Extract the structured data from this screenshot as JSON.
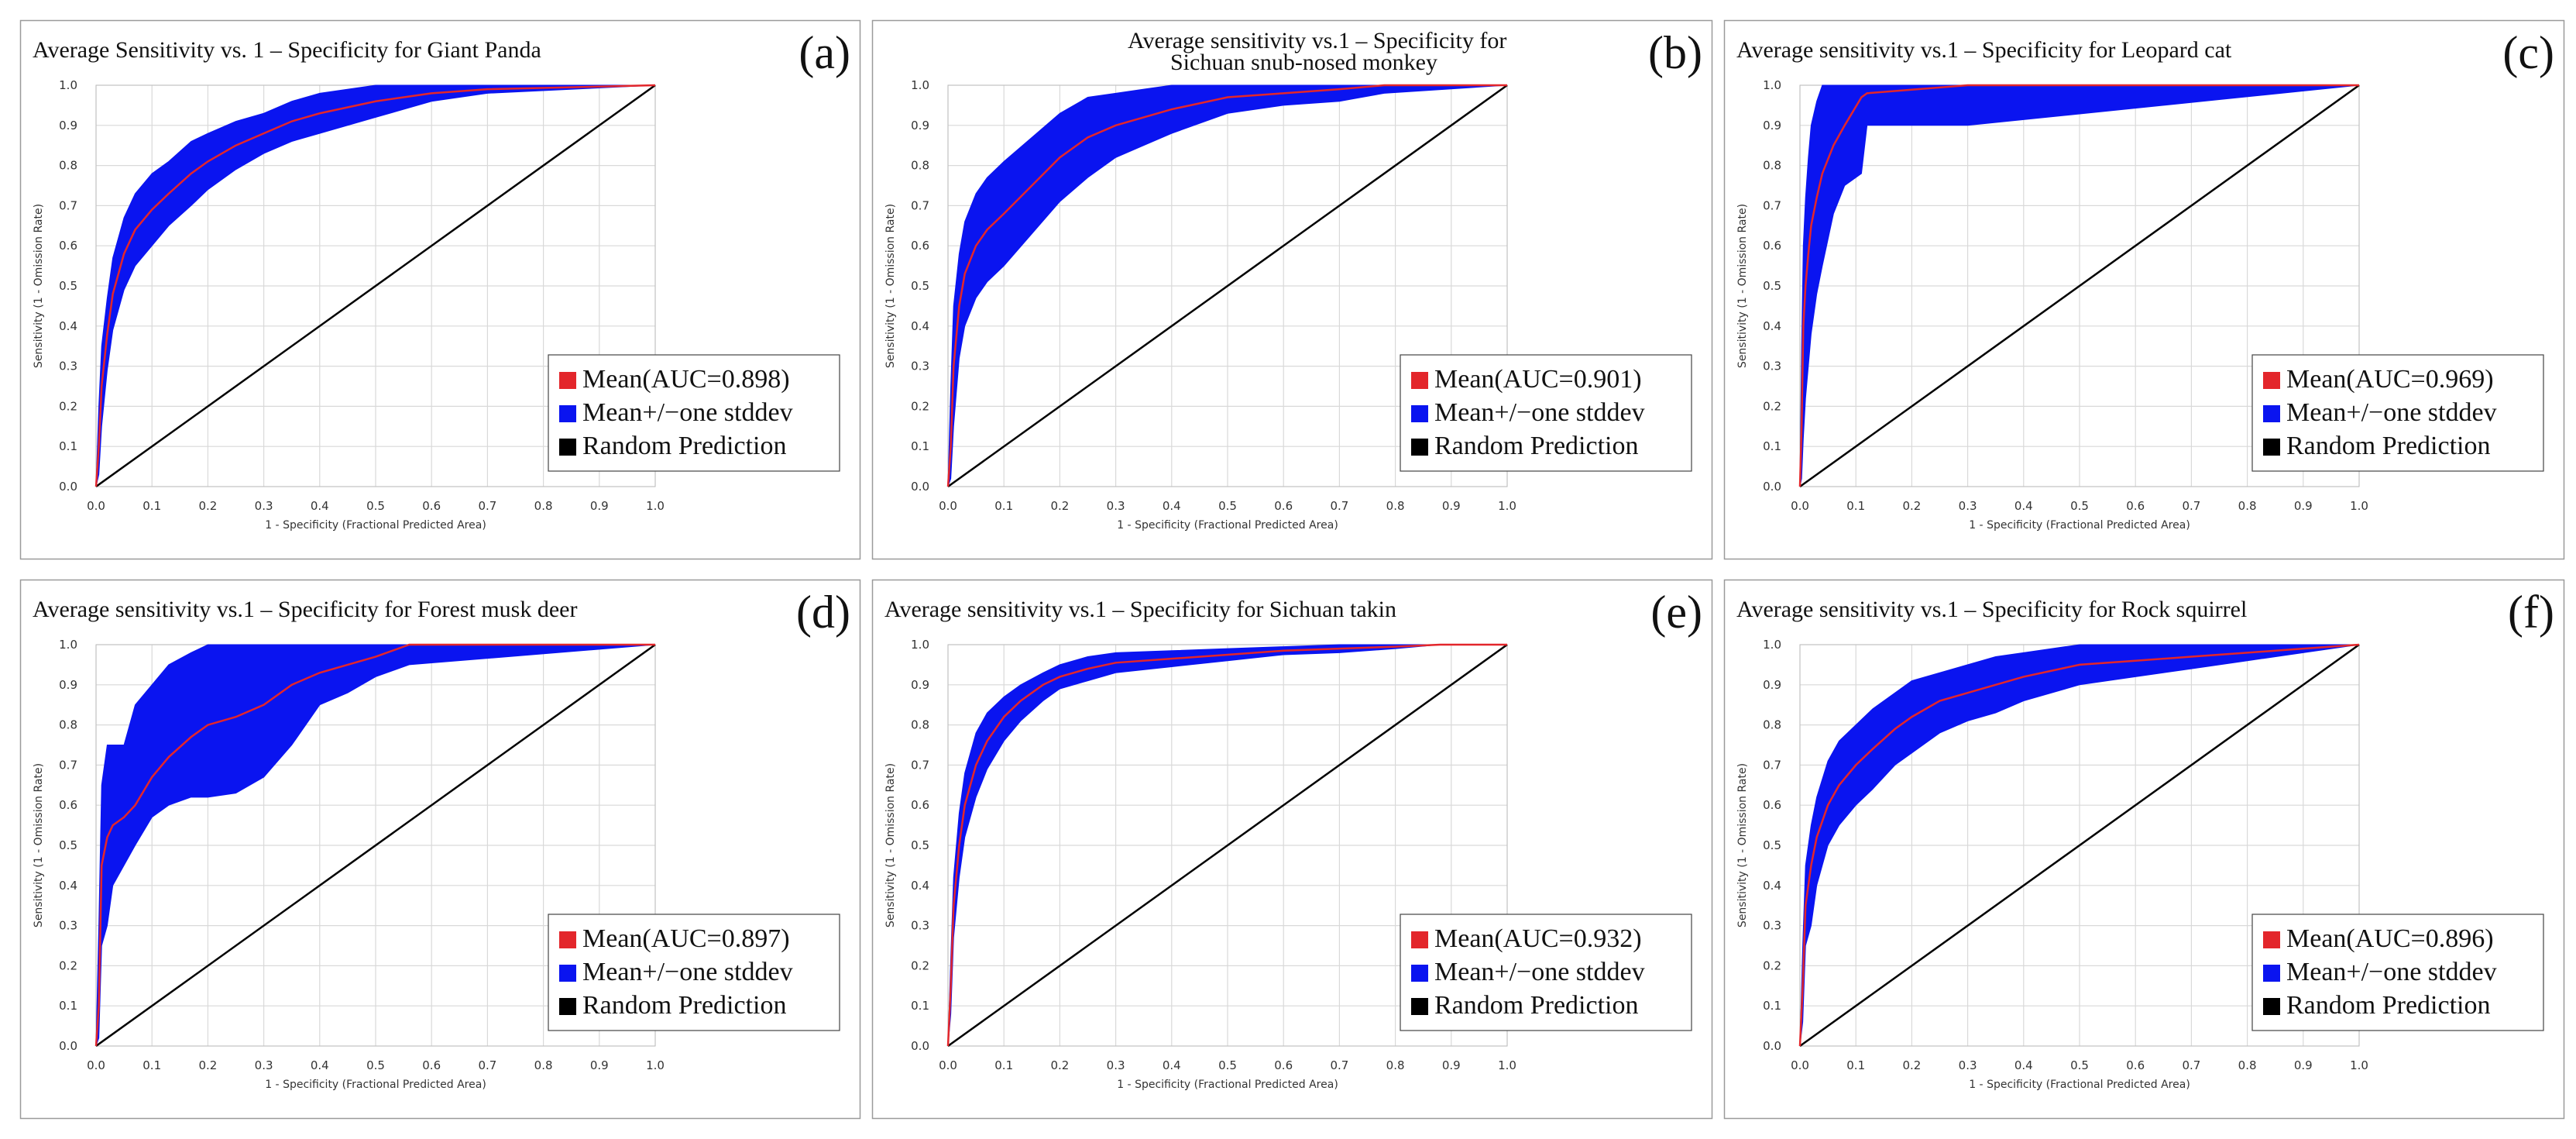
{
  "figure": {
    "legend_labels": {
      "mean_prefix": "Mean(AUC=",
      "mean_suffix": ")",
      "stddev": "Mean+/−one stddev",
      "random": "Random Prediction"
    },
    "colors": {
      "mean_line": "#e3262b",
      "stddev_band": "#0a14f0",
      "random_line": "#000000",
      "grid": "#d9d9d9",
      "frame": "#9a9a9a"
    }
  },
  "chart_data": [
    {
      "panel": "(a)",
      "type": "line",
      "title": "Average Sensitivity vs. 1 – Specificity for Giant Panda",
      "title_line2": "",
      "xlabel": "1 - Specificity (Fractional Predicted Area)",
      "ylabel": "Sensitivity (1 - Omission Rate)",
      "xlim": [
        0,
        1
      ],
      "ylim": [
        0,
        1
      ],
      "xticks": [
        "0.0",
        "0.1",
        "0.2",
        "0.3",
        "0.4",
        "0.5",
        "0.6",
        "0.7",
        "0.8",
        "0.9",
        "1.0"
      ],
      "yticks": [
        "0.0",
        "0.1",
        "0.2",
        "0.3",
        "0.4",
        "0.5",
        "0.6",
        "0.7",
        "0.8",
        "0.9",
        "1.0"
      ],
      "auc": "0.898",
      "series": [
        {
          "name": "Mean",
          "x": [
            0,
            0.005,
            0.01,
            0.02,
            0.03,
            0.05,
            0.07,
            0.1,
            0.13,
            0.17,
            0.2,
            0.25,
            0.3,
            0.35,
            0.4,
            0.5,
            0.6,
            0.7,
            1.0
          ],
          "y": [
            0,
            0.1,
            0.25,
            0.38,
            0.48,
            0.58,
            0.64,
            0.69,
            0.73,
            0.78,
            0.81,
            0.85,
            0.88,
            0.91,
            0.93,
            0.96,
            0.98,
            0.99,
            1.0
          ]
        },
        {
          "name": "Mean+/−one stddev",
          "x": [
            0,
            0.005,
            0.01,
            0.02,
            0.03,
            0.05,
            0.07,
            0.1,
            0.13,
            0.17,
            0.2,
            0.25,
            0.3,
            0.35,
            0.4,
            0.5,
            0.6,
            0.7,
            1.0
          ],
          "upper": [
            0,
            0.2,
            0.35,
            0.47,
            0.57,
            0.67,
            0.73,
            0.78,
            0.81,
            0.86,
            0.88,
            0.91,
            0.93,
            0.96,
            0.98,
            1.0,
            1.0,
            1.0,
            1.0
          ],
          "lower": [
            0,
            0.03,
            0.15,
            0.29,
            0.39,
            0.49,
            0.55,
            0.6,
            0.65,
            0.7,
            0.74,
            0.79,
            0.83,
            0.86,
            0.88,
            0.92,
            0.96,
            0.98,
            1.0
          ]
        },
        {
          "name": "Random Prediction",
          "x": [
            0,
            1
          ],
          "y": [
            0,
            1
          ]
        }
      ]
    },
    {
      "panel": "(b)",
      "type": "line",
      "title": "Average sensitivity vs.1 – Specificity for",
      "title_line2": "Sichuan snub-nosed monkey",
      "xlabel": "1 - Specificity (Fractional Predicted Area)",
      "ylabel": "Sensitivity (1 - Omission Rate)",
      "xlim": [
        0,
        1
      ],
      "ylim": [
        0,
        1
      ],
      "xticks": [
        "0.0",
        "0.1",
        "0.2",
        "0.3",
        "0.4",
        "0.5",
        "0.6",
        "0.7",
        "0.8",
        "0.9",
        "1.0"
      ],
      "yticks": [
        "0.0",
        "0.1",
        "0.2",
        "0.3",
        "0.4",
        "0.5",
        "0.6",
        "0.7",
        "0.8",
        "0.9",
        "1.0"
      ],
      "auc": "0.901",
      "series": [
        {
          "name": "Mean",
          "x": [
            0,
            0.005,
            0.01,
            0.02,
            0.03,
            0.05,
            0.07,
            0.1,
            0.15,
            0.2,
            0.25,
            0.3,
            0.35,
            0.4,
            0.5,
            0.6,
            0.7,
            0.78,
            1.0
          ],
          "y": [
            0,
            0.1,
            0.3,
            0.45,
            0.53,
            0.6,
            0.64,
            0.68,
            0.75,
            0.82,
            0.87,
            0.9,
            0.92,
            0.94,
            0.97,
            0.98,
            0.99,
            1.0,
            1.0
          ]
        },
        {
          "name": "Mean+/−one stddev",
          "x": [
            0,
            0.005,
            0.01,
            0.02,
            0.03,
            0.05,
            0.07,
            0.1,
            0.15,
            0.2,
            0.25,
            0.3,
            0.35,
            0.4,
            0.5,
            0.6,
            0.7,
            0.78,
            1.0
          ],
          "upper": [
            0,
            0.25,
            0.45,
            0.58,
            0.66,
            0.73,
            0.77,
            0.81,
            0.87,
            0.93,
            0.97,
            0.98,
            0.99,
            1.0,
            1.0,
            1.0,
            1.0,
            1.0,
            1.0
          ],
          "lower": [
            0,
            0.02,
            0.15,
            0.32,
            0.4,
            0.47,
            0.51,
            0.55,
            0.63,
            0.71,
            0.77,
            0.82,
            0.85,
            0.88,
            0.93,
            0.95,
            0.96,
            0.98,
            1.0
          ]
        },
        {
          "name": "Random Prediction",
          "x": [
            0,
            1
          ],
          "y": [
            0,
            1
          ]
        }
      ]
    },
    {
      "panel": "(c)",
      "type": "line",
      "title": "Average sensitivity vs.1 – Specificity for Leopard cat",
      "title_line2": "",
      "xlabel": "1 - Specificity (Fractional Predicted Area)",
      "ylabel": "Sensitivity (1 - Omission Rate)",
      "xlim": [
        0,
        1
      ],
      "ylim": [
        0,
        1
      ],
      "xticks": [
        "0.0",
        "0.1",
        "0.2",
        "0.3",
        "0.4",
        "0.5",
        "0.6",
        "0.7",
        "0.8",
        "0.9",
        "1.0"
      ],
      "yticks": [
        "0.0",
        "0.1",
        "0.2",
        "0.3",
        "0.4",
        "0.5",
        "0.6",
        "0.7",
        "0.8",
        "0.9",
        "1.0"
      ],
      "auc": "0.969",
      "series": [
        {
          "name": "Mean",
          "x": [
            0,
            0.003,
            0.006,
            0.01,
            0.015,
            0.02,
            0.03,
            0.04,
            0.06,
            0.08,
            0.11,
            0.12,
            0.3,
            1.0
          ],
          "y": [
            0,
            0.15,
            0.4,
            0.5,
            0.58,
            0.65,
            0.72,
            0.78,
            0.85,
            0.9,
            0.97,
            0.98,
            1.0,
            1.0
          ]
        },
        {
          "name": "Mean+/−one stddev",
          "x": [
            0,
            0.003,
            0.006,
            0.01,
            0.015,
            0.02,
            0.03,
            0.04,
            0.06,
            0.08,
            0.11,
            0.12,
            0.3,
            1.0
          ],
          "upper": [
            0,
            0.35,
            0.6,
            0.72,
            0.82,
            0.9,
            0.96,
            1.0,
            1.0,
            1.0,
            1.0,
            1.0,
            1.0,
            1.0
          ],
          "lower": [
            0,
            0.02,
            0.12,
            0.22,
            0.3,
            0.38,
            0.48,
            0.55,
            0.68,
            0.75,
            0.78,
            0.9,
            0.9,
            1.0
          ]
        },
        {
          "name": "Random Prediction",
          "x": [
            0,
            1
          ],
          "y": [
            0,
            1
          ]
        }
      ]
    },
    {
      "panel": "(d)",
      "type": "line",
      "title": "Average sensitivity vs.1 – Specificity for Forest musk deer",
      "title_line2": "",
      "xlabel": "1 - Specificity (Fractional Predicted Area)",
      "ylabel": "Sensitivity (1 - Omission Rate)",
      "xlim": [
        0,
        1
      ],
      "ylim": [
        0,
        1
      ],
      "xticks": [
        "0.0",
        "0.1",
        "0.2",
        "0.3",
        "0.4",
        "0.5",
        "0.6",
        "0.7",
        "0.8",
        "0.9",
        "1.0"
      ],
      "yticks": [
        "0.0",
        "0.1",
        "0.2",
        "0.3",
        "0.4",
        "0.5",
        "0.6",
        "0.7",
        "0.8",
        "0.9",
        "1.0"
      ],
      "auc": "0.897",
      "series": [
        {
          "name": "Mean",
          "x": [
            0,
            0.005,
            0.01,
            0.02,
            0.03,
            0.05,
            0.07,
            0.1,
            0.13,
            0.17,
            0.2,
            0.25,
            0.3,
            0.35,
            0.4,
            0.45,
            0.5,
            0.56,
            1.0
          ],
          "y": [
            0,
            0.1,
            0.45,
            0.52,
            0.55,
            0.57,
            0.6,
            0.67,
            0.72,
            0.77,
            0.8,
            0.82,
            0.85,
            0.9,
            0.93,
            0.95,
            0.97,
            1.0,
            1.0
          ]
        },
        {
          "name": "Mean+/−one stddev",
          "x": [
            0,
            0.005,
            0.01,
            0.02,
            0.03,
            0.05,
            0.07,
            0.1,
            0.13,
            0.17,
            0.2,
            0.25,
            0.3,
            0.35,
            0.4,
            0.45,
            0.5,
            0.56,
            1.0
          ],
          "upper": [
            0,
            0.3,
            0.65,
            0.75,
            0.75,
            0.75,
            0.85,
            0.9,
            0.95,
            0.98,
            1.0,
            1.0,
            1.0,
            1.0,
            1.0,
            1.0,
            1.0,
            1.0,
            1.0
          ],
          "lower": [
            0,
            0.02,
            0.25,
            0.3,
            0.4,
            0.45,
            0.5,
            0.57,
            0.6,
            0.62,
            0.62,
            0.63,
            0.67,
            0.75,
            0.85,
            0.88,
            0.92,
            0.95,
            1.0
          ]
        },
        {
          "name": "Random Prediction",
          "x": [
            0,
            1
          ],
          "y": [
            0,
            1
          ]
        }
      ]
    },
    {
      "panel": "(e)",
      "type": "line",
      "title": "Average sensitivity vs.1 – Specificity for Sichuan takin",
      "title_line2": "",
      "xlabel": "1 - Specificity (Fractional Predicted Area)",
      "ylabel": "Sensitivity (1 - Omission Rate)",
      "xlim": [
        0,
        1
      ],
      "ylim": [
        0,
        1
      ],
      "xticks": [
        "0.0",
        "0.1",
        "0.2",
        "0.3",
        "0.4",
        "0.5",
        "0.6",
        "0.7",
        "0.8",
        "0.9",
        "1.0"
      ],
      "yticks": [
        "0.0",
        "0.1",
        "0.2",
        "0.3",
        "0.4",
        "0.5",
        "0.6",
        "0.7",
        "0.8",
        "0.9",
        "1.0"
      ],
      "auc": "0.932",
      "series": [
        {
          "name": "Mean",
          "x": [
            0,
            0.005,
            0.01,
            0.02,
            0.03,
            0.05,
            0.07,
            0.1,
            0.13,
            0.17,
            0.2,
            0.25,
            0.3,
            0.4,
            0.5,
            0.6,
            0.7,
            0.8,
            0.88,
            1.0
          ],
          "y": [
            0,
            0.15,
            0.35,
            0.5,
            0.6,
            0.7,
            0.76,
            0.82,
            0.86,
            0.9,
            0.92,
            0.94,
            0.955,
            0.965,
            0.975,
            0.985,
            0.99,
            0.995,
            1.0,
            1.0
          ]
        },
        {
          "name": "Mean+/−one stddev",
          "x": [
            0,
            0.005,
            0.01,
            0.02,
            0.03,
            0.05,
            0.07,
            0.1,
            0.13,
            0.17,
            0.2,
            0.25,
            0.3,
            0.4,
            0.5,
            0.6,
            0.7,
            0.8,
            0.88,
            1.0
          ],
          "upper": [
            0,
            0.22,
            0.42,
            0.58,
            0.68,
            0.78,
            0.83,
            0.87,
            0.9,
            0.93,
            0.95,
            0.97,
            0.98,
            0.985,
            0.99,
            0.995,
            1.0,
            1.0,
            1.0,
            1.0
          ],
          "lower": [
            0,
            0.08,
            0.27,
            0.42,
            0.52,
            0.62,
            0.69,
            0.76,
            0.81,
            0.86,
            0.89,
            0.91,
            0.93,
            0.945,
            0.96,
            0.975,
            0.98,
            0.99,
            1.0,
            1.0
          ]
        },
        {
          "name": "Random Prediction",
          "x": [
            0,
            1
          ],
          "y": [
            0,
            1
          ]
        }
      ]
    },
    {
      "panel": "(f)",
      "type": "line",
      "title": "Average sensitivity vs.1 – Specificity for Rock squirrel",
      "title_line2": "",
      "xlabel": "1 - Specificity (Fractional Predicted Area)",
      "ylabel": "Sensitivity (1 - Omission Rate)",
      "xlim": [
        0,
        1
      ],
      "ylim": [
        0,
        1
      ],
      "xticks": [
        "0.0",
        "0.1",
        "0.2",
        "0.3",
        "0.4",
        "0.5",
        "0.6",
        "0.7",
        "0.8",
        "0.9",
        "1.0"
      ],
      "yticks": [
        "0.0",
        "0.1",
        "0.2",
        "0.3",
        "0.4",
        "0.5",
        "0.6",
        "0.7",
        "0.8",
        "0.9",
        "1.0"
      ],
      "auc": "0.896",
      "series": [
        {
          "name": "Mean",
          "x": [
            0,
            0.005,
            0.01,
            0.02,
            0.03,
            0.05,
            0.07,
            0.1,
            0.13,
            0.17,
            0.2,
            0.25,
            0.3,
            0.35,
            0.4,
            0.5,
            0.6,
            0.7,
            0.8,
            0.9,
            1.0
          ],
          "y": [
            0,
            0.15,
            0.35,
            0.45,
            0.52,
            0.6,
            0.65,
            0.7,
            0.74,
            0.79,
            0.82,
            0.86,
            0.88,
            0.9,
            0.92,
            0.95,
            0.96,
            0.97,
            0.98,
            0.99,
            1.0
          ]
        },
        {
          "name": "Mean+/−one stddev",
          "x": [
            0,
            0.005,
            0.01,
            0.02,
            0.03,
            0.05,
            0.07,
            0.1,
            0.13,
            0.17,
            0.2,
            0.25,
            0.3,
            0.35,
            0.4,
            0.5,
            0.6,
            0.7,
            0.8,
            0.9,
            1.0
          ],
          "upper": [
            0,
            0.25,
            0.45,
            0.55,
            0.62,
            0.71,
            0.76,
            0.8,
            0.84,
            0.88,
            0.91,
            0.93,
            0.95,
            0.97,
            0.98,
            1.0,
            1.0,
            1.0,
            1.0,
            1.0,
            1.0
          ],
          "lower": [
            0,
            0.06,
            0.25,
            0.3,
            0.4,
            0.5,
            0.55,
            0.6,
            0.64,
            0.7,
            0.73,
            0.78,
            0.81,
            0.83,
            0.86,
            0.9,
            0.92,
            0.94,
            0.96,
            0.98,
            1.0
          ]
        },
        {
          "name": "Random Prediction",
          "x": [
            0,
            1
          ],
          "y": [
            0,
            1
          ]
        }
      ]
    }
  ]
}
